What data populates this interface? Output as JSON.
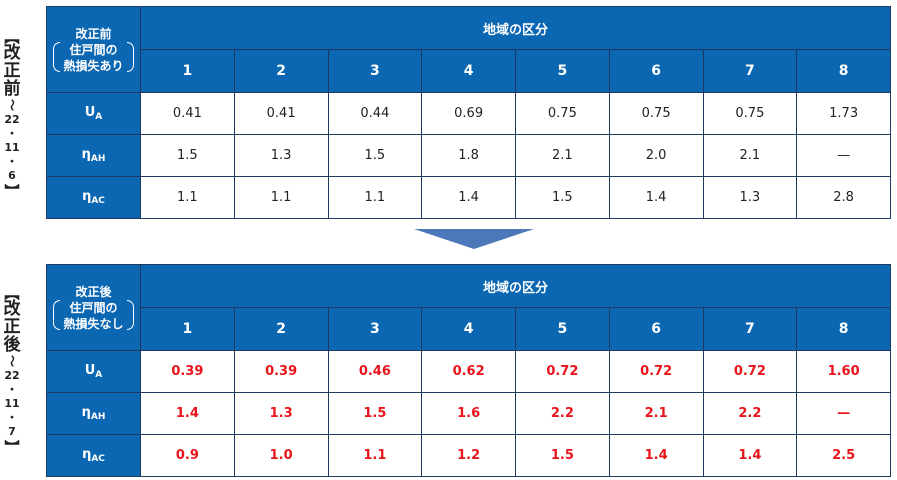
{
  "before": {
    "side_label": {
      "bracket_open": "【",
      "chars": [
        "改",
        "正",
        "前"
      ],
      "tilde": "〜",
      "date_parts": [
        "22",
        "・",
        "11",
        "・",
        "6"
      ],
      "bracket_close": "】"
    },
    "corner": {
      "line1": "改正前",
      "line2": "住戸間の",
      "line3": "熱損失あり"
    },
    "region_title": "地域の区分",
    "regions": [
      "1",
      "2",
      "3",
      "4",
      "5",
      "6",
      "7",
      "8"
    ],
    "rows": [
      {
        "label": "U",
        "sub": "A",
        "values": [
          "0.41",
          "0.41",
          "0.44",
          "0.69",
          "0.75",
          "0.75",
          "0.75",
          "1.73"
        ]
      },
      {
        "label": "η",
        "sub": "AH",
        "values": [
          "1.5",
          "1.3",
          "1.5",
          "1.8",
          "2.1",
          "2.0",
          "2.1",
          "—"
        ]
      },
      {
        "label": "η",
        "sub": "AC",
        "values": [
          "1.1",
          "1.1",
          "1.1",
          "1.4",
          "1.5",
          "1.4",
          "1.3",
          "2.8"
        ]
      }
    ]
  },
  "after": {
    "side_label": {
      "bracket_open": "【",
      "chars": [
        "改",
        "正",
        "後"
      ],
      "tilde": "〜",
      "date_parts": [
        "22",
        "・",
        "11",
        "・",
        "7"
      ],
      "bracket_close": "】"
    },
    "corner": {
      "line1": "改正後",
      "line2": "住戸間の",
      "line3": "熱損失なし"
    },
    "region_title": "地域の区分",
    "regions": [
      "1",
      "2",
      "3",
      "4",
      "5",
      "6",
      "7",
      "8"
    ],
    "rows": [
      {
        "label": "U",
        "sub": "A",
        "values": [
          "0.39",
          "0.39",
          "0.46",
          "0.62",
          "0.72",
          "0.72",
          "0.72",
          "1.60"
        ]
      },
      {
        "label": "η",
        "sub": "AH",
        "values": [
          "1.4",
          "1.3",
          "1.5",
          "1.6",
          "2.2",
          "2.1",
          "2.2",
          "—"
        ]
      },
      {
        "label": "η",
        "sub": "AC",
        "values": [
          "0.9",
          "1.0",
          "1.1",
          "1.2",
          "1.5",
          "1.4",
          "1.4",
          "2.5"
        ]
      }
    ]
  },
  "colors": {
    "header_blue": "#0b67b2",
    "highlight_red": "#e8141a",
    "arrow_blue": "#4a78b8"
  }
}
